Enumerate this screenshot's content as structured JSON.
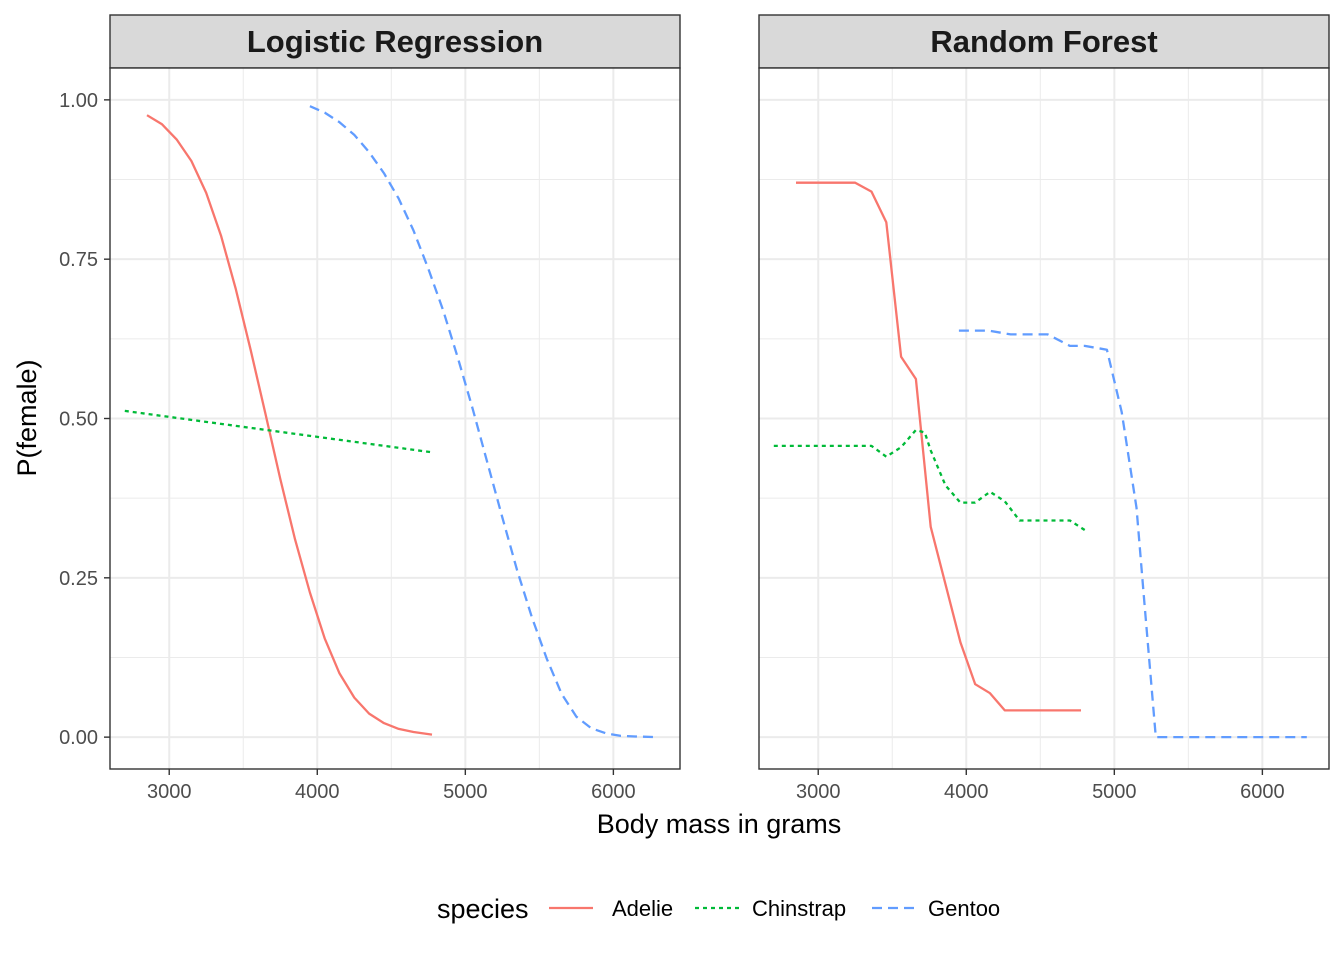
{
  "chart_data": {
    "type": "line",
    "ylabel": "P(female)",
    "xlabel": "Body mass in grams",
    "xlim": [
      2600,
      6450
    ],
    "ylim": [
      -0.05,
      1.05
    ],
    "x_ticks": [
      3000,
      4000,
      5000,
      6000
    ],
    "x_tick_labels": [
      "3000",
      "4000",
      "5000",
      "6000"
    ],
    "y_ticks": [
      0,
      0.25,
      0.5,
      0.75,
      1.0
    ],
    "y_tick_labels": [
      "0.00",
      "0.25",
      "0.50",
      "0.75",
      "1.00"
    ],
    "grid": true,
    "legend": {
      "title": "species",
      "placement": "bottom",
      "entries": [
        {
          "label": "Adelie",
          "color": "#F8766D",
          "dash": "solid"
        },
        {
          "label": "Chinstrap",
          "color": "#00BA38",
          "dash": "dotted"
        },
        {
          "label": "Gentoo",
          "color": "#619CFF",
          "dash": "dashed"
        }
      ]
    },
    "panels": [
      {
        "title": "Logistic Regression",
        "series": [
          {
            "name": "Adelie",
            "points": [
              [
                2850,
                0.976
              ],
              [
                2950,
                0.962
              ],
              [
                3050,
                0.938
              ],
              [
                3150,
                0.904
              ],
              [
                3250,
                0.854
              ],
              [
                3350,
                0.787
              ],
              [
                3450,
                0.703
              ],
              [
                3550,
                0.608
              ],
              [
                3650,
                0.507
              ],
              [
                3750,
                0.405
              ],
              [
                3850,
                0.31
              ],
              [
                3950,
                0.227
              ],
              [
                4050,
                0.155
              ],
              [
                4150,
                0.1
              ],
              [
                4250,
                0.062
              ],
              [
                4350,
                0.037
              ],
              [
                4450,
                0.022
              ],
              [
                4550,
                0.013
              ],
              [
                4650,
                0.008
              ],
              [
                4775,
                0.004
              ]
            ]
          },
          {
            "name": "Chinstrap",
            "points": [
              [
                2700,
                0.512
              ],
              [
                4775,
                0.447
              ]
            ]
          },
          {
            "name": "Gentoo",
            "points": [
              [
                3950,
                0.99
              ],
              [
                4050,
                0.98
              ],
              [
                4150,
                0.965
              ],
              [
                4250,
                0.945
              ],
              [
                4350,
                0.918
              ],
              [
                4450,
                0.885
              ],
              [
                4550,
                0.845
              ],
              [
                4650,
                0.795
              ],
              [
                4750,
                0.735
              ],
              [
                4850,
                0.67
              ],
              [
                4950,
                0.595
              ],
              [
                5050,
                0.515
              ],
              [
                5150,
                0.43
              ],
              [
                5250,
                0.345
              ],
              [
                5350,
                0.262
              ],
              [
                5450,
                0.188
              ],
              [
                5550,
                0.123
              ],
              [
                5650,
                0.068
              ],
              [
                5750,
                0.032
              ],
              [
                5850,
                0.014
              ],
              [
                5950,
                0.006
              ],
              [
                6050,
                0.002
              ],
              [
                6150,
                0.001
              ],
              [
                6300,
                0.0
              ]
            ]
          }
        ]
      },
      {
        "title": "Random Forest",
        "series": [
          {
            "name": "Adelie",
            "points": [
              [
                2850,
                0.87
              ],
              [
                3250,
                0.87
              ],
              [
                3360,
                0.856
              ],
              [
                3460,
                0.808
              ],
              [
                3560,
                0.597
              ],
              [
                3660,
                0.562
              ],
              [
                3760,
                0.33
              ],
              [
                3960,
                0.149
              ],
              [
                4060,
                0.083
              ],
              [
                4160,
                0.069
              ],
              [
                4260,
                0.042
              ],
              [
                4775,
                0.042
              ]
            ]
          },
          {
            "name": "Chinstrap",
            "points": [
              [
                2700,
                0.457
              ],
              [
                3360,
                0.457
              ],
              [
                3460,
                0.44
              ],
              [
                3560,
                0.455
              ],
              [
                3660,
                0.482
              ],
              [
                3720,
                0.478
              ],
              [
                3760,
                0.45
              ],
              [
                3860,
                0.395
              ],
              [
                3960,
                0.368
              ],
              [
                4060,
                0.368
              ],
              [
                4160,
                0.385
              ],
              [
                4260,
                0.37
              ],
              [
                4360,
                0.34
              ],
              [
                4700,
                0.34
              ],
              [
                4800,
                0.325
              ]
            ]
          },
          {
            "name": "Gentoo",
            "points": [
              [
                3950,
                0.638
              ],
              [
                4150,
                0.638
              ],
              [
                4300,
                0.632
              ],
              [
                4550,
                0.632
              ],
              [
                4700,
                0.614
              ],
              [
                4800,
                0.614
              ],
              [
                4950,
                0.608
              ],
              [
                5050,
                0.51
              ],
              [
                5150,
                0.36
              ],
              [
                5200,
                0.22
              ],
              [
                5280,
                0.0
              ],
              [
                6300,
                0.0
              ]
            ]
          }
        ]
      }
    ]
  }
}
